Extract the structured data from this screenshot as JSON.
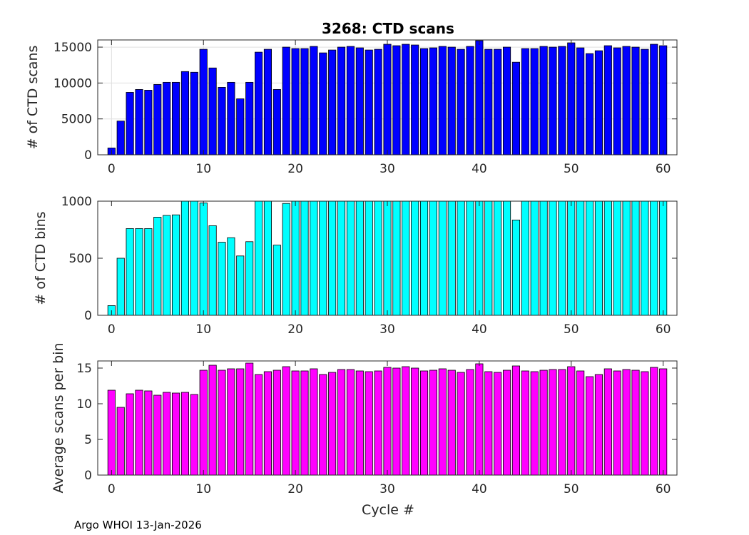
{
  "title": "3268: CTD scans",
  "footer": "Argo WHOI 13-Jan-2026",
  "xlabel": "Cycle #",
  "xticks": [
    0,
    10,
    20,
    30,
    40,
    50,
    60
  ],
  "chart_data": [
    {
      "type": "bar",
      "title": "3268: CTD scans",
      "ylabel": "# of CTD scans",
      "xlabel": "",
      "color": "#0000ff",
      "xlim": [
        -1.5,
        61.5
      ],
      "ylim": [
        0,
        16000
      ],
      "yticks": [
        0,
        5000,
        10000,
        15000
      ],
      "grid": true,
      "x": [
        0,
        1,
        2,
        3,
        4,
        5,
        6,
        7,
        8,
        9,
        10,
        11,
        12,
        13,
        14,
        15,
        16,
        17,
        18,
        19,
        20,
        21,
        22,
        23,
        24,
        25,
        26,
        27,
        28,
        29,
        30,
        31,
        32,
        33,
        34,
        35,
        36,
        37,
        38,
        39,
        40,
        41,
        42,
        43,
        44,
        45,
        46,
        47,
        48,
        49,
        50,
        51,
        52,
        53,
        54,
        55,
        56,
        57,
        58,
        59,
        60
      ],
      "values": [
        950,
        4700,
        8700,
        9100,
        9000,
        9800,
        10100,
        10100,
        11600,
        11500,
        14700,
        12100,
        9400,
        10100,
        7800,
        10100,
        14300,
        14700,
        9100,
        15000,
        14800,
        14800,
        15100,
        14200,
        14600,
        15000,
        15100,
        14900,
        14600,
        14700,
        15400,
        15200,
        15400,
        15300,
        14800,
        14900,
        15100,
        15000,
        14700,
        15100,
        15900,
        14700,
        14700,
        15000,
        12900,
        14800,
        14800,
        15100,
        15000,
        15100,
        15600,
        14900,
        14100,
        14500,
        15200,
        14900,
        15100,
        15000,
        14700,
        15400,
        15200
      ]
    },
    {
      "type": "bar",
      "ylabel": "# of CTD bins",
      "xlabel": "",
      "color": "#00ffff",
      "xlim": [
        -1.5,
        61.5
      ],
      "ylim": [
        0,
        1000
      ],
      "yticks": [
        0,
        500,
        1000
      ],
      "grid": false,
      "x": [
        0,
        1,
        2,
        3,
        4,
        5,
        6,
        7,
        8,
        9,
        10,
        11,
        12,
        13,
        14,
        15,
        16,
        17,
        18,
        19,
        20,
        21,
        22,
        23,
        24,
        25,
        26,
        27,
        28,
        29,
        30,
        31,
        32,
        33,
        34,
        35,
        36,
        37,
        38,
        39,
        40,
        41,
        42,
        43,
        44,
        45,
        46,
        47,
        48,
        49,
        50,
        51,
        52,
        53,
        54,
        55,
        56,
        57,
        58,
        59,
        60
      ],
      "values": [
        85,
        500,
        760,
        760,
        760,
        860,
        875,
        880,
        1000,
        1000,
        985,
        785,
        640,
        680,
        520,
        645,
        1000,
        1000,
        615,
        980,
        1000,
        1000,
        1000,
        1000,
        1000,
        1000,
        1000,
        1000,
        1000,
        1000,
        1000,
        1000,
        1000,
        1000,
        1000,
        1000,
        1000,
        1000,
        1000,
        1000,
        1000,
        1000,
        1000,
        1000,
        835,
        1000,
        1000,
        1000,
        1000,
        1000,
        1000,
        1000,
        1000,
        1000,
        1000,
        1000,
        1000,
        1000,
        1000,
        1000,
        1000
      ]
    },
    {
      "type": "bar",
      "ylabel": "Average scans per bin",
      "xlabel": "Cycle #",
      "color": "#ff00ff",
      "xlim": [
        -1.5,
        61.5
      ],
      "ylim": [
        0,
        16
      ],
      "yticks": [
        0,
        5,
        10,
        15
      ],
      "grid": false,
      "x": [
        0,
        1,
        2,
        3,
        4,
        5,
        6,
        7,
        8,
        9,
        10,
        11,
        12,
        13,
        14,
        15,
        16,
        17,
        18,
        19,
        20,
        21,
        22,
        23,
        24,
        25,
        26,
        27,
        28,
        29,
        30,
        31,
        32,
        33,
        34,
        35,
        36,
        37,
        38,
        39,
        40,
        41,
        42,
        43,
        44,
        45,
        46,
        47,
        48,
        49,
        50,
        51,
        52,
        53,
        54,
        55,
        56,
        57,
        58,
        59,
        60
      ],
      "values": [
        11.9,
        9.5,
        11.4,
        11.9,
        11.8,
        11.2,
        11.6,
        11.5,
        11.6,
        11.3,
        14.7,
        15.4,
        14.7,
        14.9,
        14.9,
        15.7,
        14.1,
        14.5,
        14.7,
        15.2,
        14.6,
        14.6,
        14.9,
        14.1,
        14.4,
        14.8,
        14.8,
        14.6,
        14.5,
        14.6,
        15.1,
        15.0,
        15.2,
        15.0,
        14.6,
        14.7,
        14.9,
        14.7,
        14.4,
        14.8,
        15.6,
        14.5,
        14.4,
        14.7,
        15.3,
        14.6,
        14.5,
        14.7,
        14.8,
        14.8,
        15.2,
        14.6,
        13.8,
        14.1,
        14.9,
        14.6,
        14.8,
        14.7,
        14.5,
        15.1,
        14.9
      ]
    }
  ]
}
